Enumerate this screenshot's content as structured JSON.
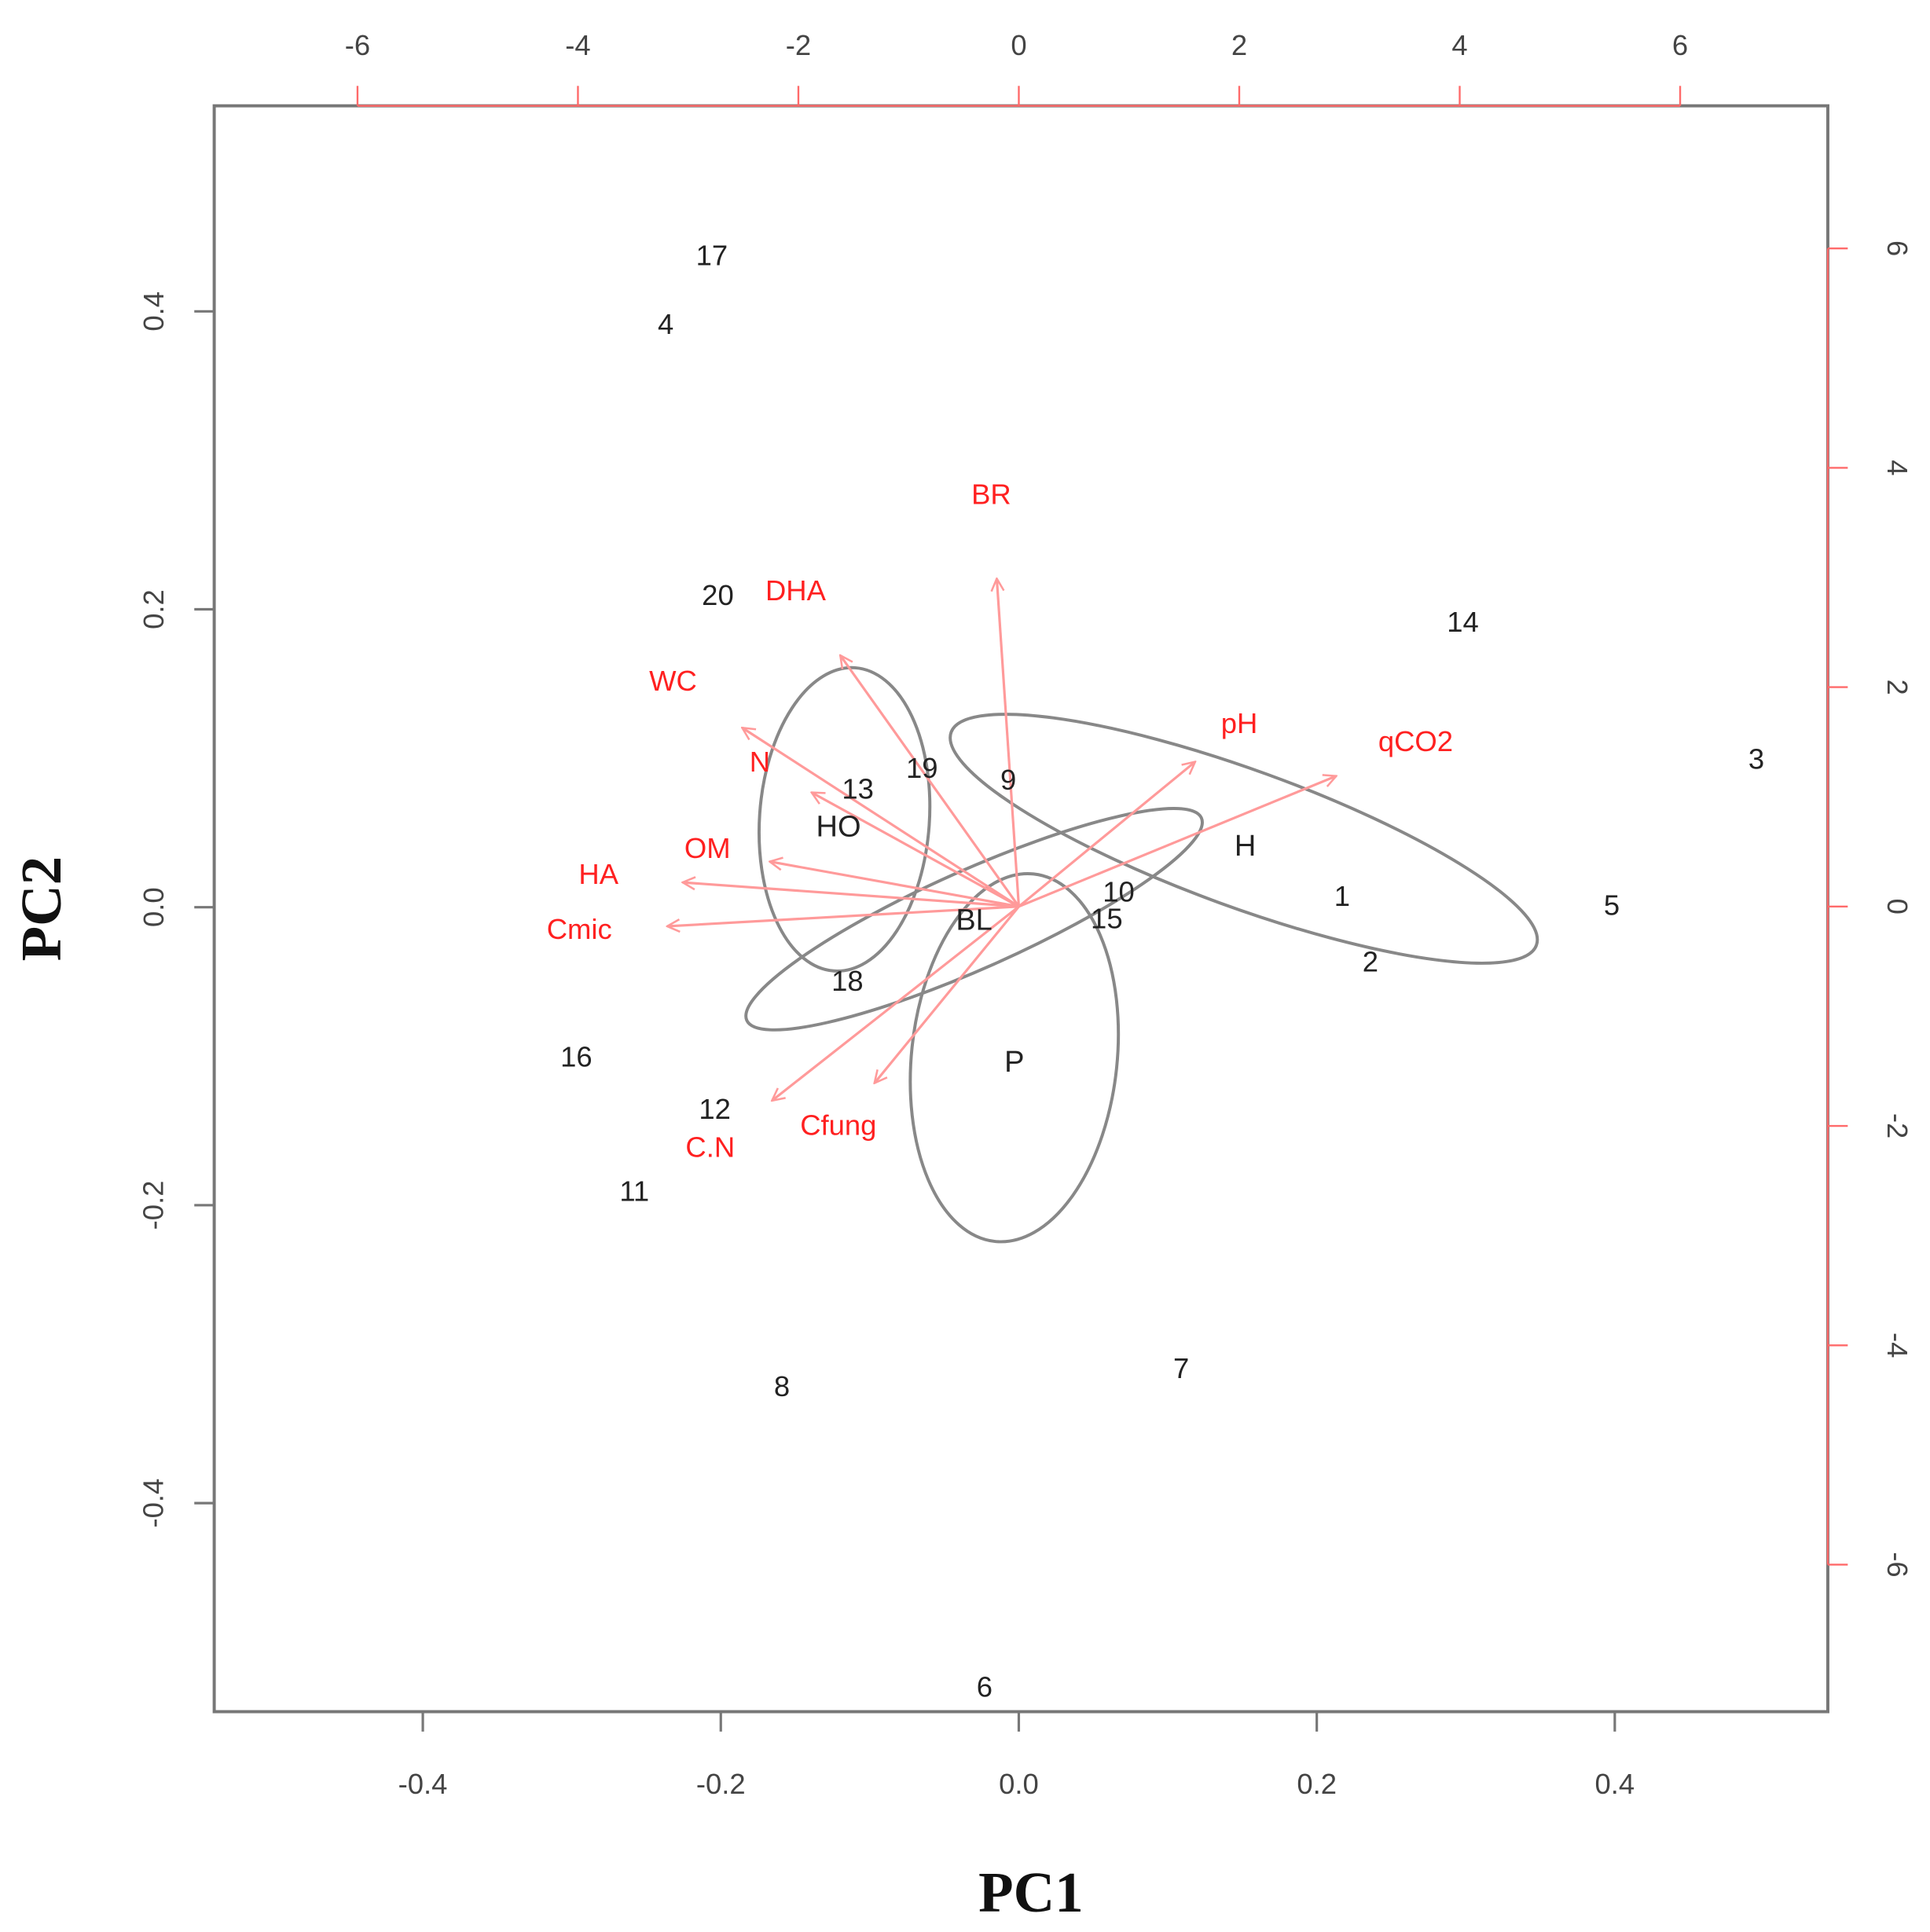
{
  "chart_data": {
    "type": "biplot",
    "xlabel": "PC1",
    "ylabel": "PC2",
    "xlim": [
      -0.54,
      0.543
    ],
    "ylim": [
      -0.54,
      0.538
    ],
    "xticks": [
      -0.4,
      -0.2,
      {
        "value": 0,
        "label": "0.0"
      },
      0.2,
      0.4
    ],
    "yticks": [
      -0.4,
      -0.2,
      {
        "value": 0,
        "label": "0.0"
      },
      0.2,
      0.4
    ],
    "x2lim": [
      -7.3,
      7.34
    ],
    "y2lim": [
      -7.34,
      7.3
    ],
    "x2ticks": [
      -6,
      -4,
      -2,
      0,
      2,
      4,
      6
    ],
    "y2ticks": [
      -6,
      -4,
      -2,
      0,
      2,
      4,
      6
    ],
    "point_color": "#222222",
    "ellipse_color": "#888888",
    "loading_color": "#ff2020",
    "arrow_color": "#ff9a9a",
    "points": {
      "labels": [
        "17",
        "4",
        "20",
        "14",
        "3",
        "19",
        "9",
        "13",
        "1",
        "5",
        "10",
        "15",
        "2",
        "18",
        "16",
        "12",
        "11",
        "8",
        "7",
        "6"
      ],
      "x": [
        -0.206,
        -0.237,
        -0.202,
        0.298,
        0.495,
        -0.065,
        -0.007,
        -0.108,
        0.217,
        0.398,
        0.067,
        0.059,
        0.236,
        -0.115,
        -0.297,
        -0.204,
        -0.258,
        -0.159,
        0.109,
        -0.023
      ],
      "y": [
        0.436,
        0.39,
        0.208,
        0.19,
        0.098,
        0.092,
        0.084,
        0.078,
        0.006,
        0.0,
        0.009,
        -0.009,
        -0.038,
        -0.051,
        -0.102,
        -0.137,
        -0.192,
        -0.323,
        -0.311,
        -0.525
      ]
    },
    "groups": [
      {
        "label": "HO",
        "x": -0.121,
        "y": 0.053,
        "cx": -0.117,
        "cy": 0.059,
        "rx": 0.057,
        "ry": 0.102,
        "angle": -4
      },
      {
        "label": "H",
        "x": 0.152,
        "y": 0.04,
        "cx": 0.151,
        "cy": 0.046,
        "rx": 0.209,
        "ry": 0.046,
        "angle": -20
      },
      {
        "label": "BL",
        "x": -0.03,
        "y": -0.01,
        "cx": -0.03,
        "cy": -0.008,
        "rx": 0.167,
        "ry": 0.033,
        "angle": 24
      },
      {
        "label": "P",
        "x": -0.003,
        "y": -0.105,
        "cx": -0.003,
        "cy": -0.101,
        "rx": 0.069,
        "ry": 0.124,
        "angle": -6
      }
    ],
    "loadings": {
      "labels": [
        "BR",
        "DHA",
        "WC",
        "N",
        "OM",
        "HA",
        "Cmic",
        "C.N",
        "Cfung",
        "pH",
        "qCO2"
      ],
      "x": [
        -0.2,
        -1.62,
        -2.51,
        -1.88,
        -2.26,
        -3.05,
        -3.19,
        -2.24,
        -1.31,
        1.6,
        2.88
      ],
      "y": [
        2.99,
        2.29,
        1.63,
        1.04,
        0.41,
        0.22,
        -0.18,
        -1.77,
        -1.61,
        1.32,
        1.19
      ]
    }
  }
}
